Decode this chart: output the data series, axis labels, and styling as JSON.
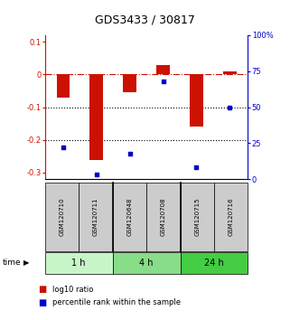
{
  "title": "GDS3433 / 30817",
  "samples": [
    "GSM120710",
    "GSM120711",
    "GSM120648",
    "GSM120708",
    "GSM120715",
    "GSM120716"
  ],
  "log10_ratio": [
    -0.07,
    -0.26,
    -0.055,
    0.03,
    -0.16,
    0.01
  ],
  "percentile_rank": [
    22,
    3,
    18,
    68,
    8,
    50
  ],
  "ylim_left": [
    -0.32,
    0.12
  ],
  "ylim_right": [
    0,
    100
  ],
  "yticks_left": [
    0.1,
    0.0,
    -0.1,
    -0.2,
    -0.3
  ],
  "yticks_right": [
    100,
    75,
    50,
    25,
    0
  ],
  "time_groups": [
    {
      "label": "1 h",
      "start": 0,
      "end": 2,
      "color": "#c8f5c8"
    },
    {
      "label": "4 h",
      "start": 2,
      "end": 4,
      "color": "#88dd88"
    },
    {
      "label": "24 h",
      "start": 4,
      "end": 6,
      "color": "#44cc44"
    }
  ],
  "bar_color": "#cc1100",
  "scatter_color": "#0000cc",
  "bar_width": 0.4,
  "dashed_line_color": "#cc1100",
  "dotted_line_color": "#000000",
  "background_color": "#ffffff",
  "title_fontsize": 9,
  "tick_fontsize": 6,
  "sample_fontsize": 5,
  "time_fontsize": 7,
  "legend_fontsize": 6
}
